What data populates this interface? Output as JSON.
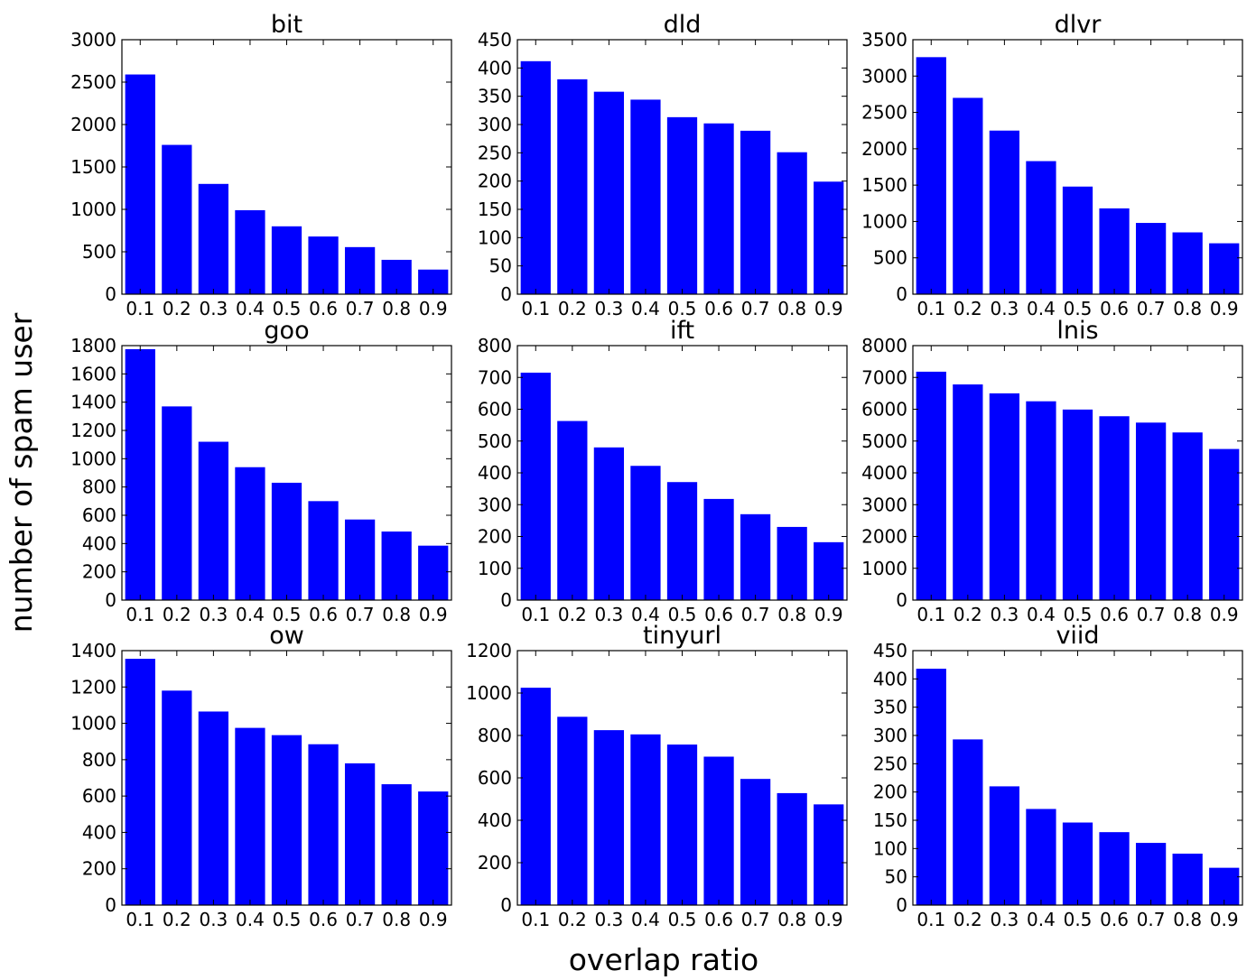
{
  "figure": {
    "ylabel": "number of spam user",
    "xlabel": "overlap ratio"
  },
  "colors": {
    "bar": "#0000ff",
    "axis": "#000000",
    "background": "#ffffff"
  },
  "chart_data": [
    {
      "type": "bar",
      "title": "bit",
      "categories": [
        "0.1",
        "0.2",
        "0.3",
        "0.4",
        "0.5",
        "0.6",
        "0.7",
        "0.8",
        "0.9"
      ],
      "values": [
        2590,
        1760,
        1300,
        990,
        800,
        680,
        555,
        405,
        290
      ],
      "ylim": [
        0,
        3000
      ],
      "yticks": [
        0,
        500,
        1000,
        1500,
        2000,
        2500,
        3000
      ],
      "grid": false
    },
    {
      "type": "bar",
      "title": "dld",
      "categories": [
        "0.1",
        "0.2",
        "0.3",
        "0.4",
        "0.5",
        "0.6",
        "0.7",
        "0.8",
        "0.9"
      ],
      "values": [
        412,
        380,
        358,
        344,
        313,
        302,
        289,
        251,
        199
      ],
      "ylim": [
        0,
        450
      ],
      "yticks": [
        0,
        50,
        100,
        150,
        200,
        250,
        300,
        350,
        400,
        450
      ],
      "grid": false
    },
    {
      "type": "bar",
      "title": "dlvr",
      "categories": [
        "0.1",
        "0.2",
        "0.3",
        "0.4",
        "0.5",
        "0.6",
        "0.7",
        "0.8",
        "0.9"
      ],
      "values": [
        3260,
        2700,
        2250,
        1830,
        1480,
        1180,
        980,
        850,
        700
      ],
      "ylim": [
        0,
        3500
      ],
      "yticks": [
        0,
        500,
        1000,
        1500,
        2000,
        2500,
        3000,
        3500
      ],
      "grid": false
    },
    {
      "type": "bar",
      "title": "goo",
      "categories": [
        "0.1",
        "0.2",
        "0.3",
        "0.4",
        "0.5",
        "0.6",
        "0.7",
        "0.8",
        "0.9"
      ],
      "values": [
        1775,
        1370,
        1120,
        940,
        830,
        700,
        570,
        485,
        385
      ],
      "ylim": [
        0,
        1800
      ],
      "yticks": [
        0,
        200,
        400,
        600,
        800,
        1000,
        1200,
        1400,
        1600,
        1800
      ],
      "grid": false
    },
    {
      "type": "bar",
      "title": "ift",
      "categories": [
        "0.1",
        "0.2",
        "0.3",
        "0.4",
        "0.5",
        "0.6",
        "0.7",
        "0.8",
        "0.9"
      ],
      "values": [
        715,
        563,
        480,
        422,
        371,
        318,
        270,
        230,
        182
      ],
      "ylim": [
        0,
        800
      ],
      "yticks": [
        0,
        100,
        200,
        300,
        400,
        500,
        600,
        700,
        800
      ],
      "grid": false
    },
    {
      "type": "bar",
      "title": "lnis",
      "categories": [
        "0.1",
        "0.2",
        "0.3",
        "0.4",
        "0.5",
        "0.6",
        "0.7",
        "0.8",
        "0.9"
      ],
      "values": [
        7180,
        6780,
        6500,
        6250,
        5990,
        5780,
        5580,
        5270,
        4750
      ],
      "ylim": [
        0,
        8000
      ],
      "yticks": [
        0,
        1000,
        2000,
        3000,
        4000,
        5000,
        6000,
        7000,
        8000
      ],
      "grid": false
    },
    {
      "type": "bar",
      "title": "ow",
      "categories": [
        "0.1",
        "0.2",
        "0.3",
        "0.4",
        "0.5",
        "0.6",
        "0.7",
        "0.8",
        "0.9"
      ],
      "values": [
        1355,
        1180,
        1065,
        975,
        935,
        885,
        780,
        665,
        625
      ],
      "ylim": [
        0,
        1400
      ],
      "yticks": [
        0,
        200,
        400,
        600,
        800,
        1000,
        1200,
        1400
      ],
      "grid": false
    },
    {
      "type": "bar",
      "title": "tinyurl",
      "categories": [
        "0.1",
        "0.2",
        "0.3",
        "0.4",
        "0.5",
        "0.6",
        "0.7",
        "0.8",
        "0.9"
      ],
      "values": [
        1025,
        888,
        825,
        805,
        757,
        700,
        595,
        528,
        475
      ],
      "ylim": [
        0,
        1200
      ],
      "yticks": [
        0,
        200,
        400,
        600,
        800,
        1000,
        1200
      ],
      "grid": false
    },
    {
      "type": "bar",
      "title": "viid",
      "categories": [
        "0.1",
        "0.2",
        "0.3",
        "0.4",
        "0.5",
        "0.6",
        "0.7",
        "0.8",
        "0.9"
      ],
      "values": [
        418,
        293,
        210,
        170,
        146,
        129,
        110,
        91,
        66
      ],
      "ylim": [
        0,
        450
      ],
      "yticks": [
        0,
        50,
        100,
        150,
        200,
        250,
        300,
        350,
        400,
        450
      ],
      "grid": false
    }
  ]
}
